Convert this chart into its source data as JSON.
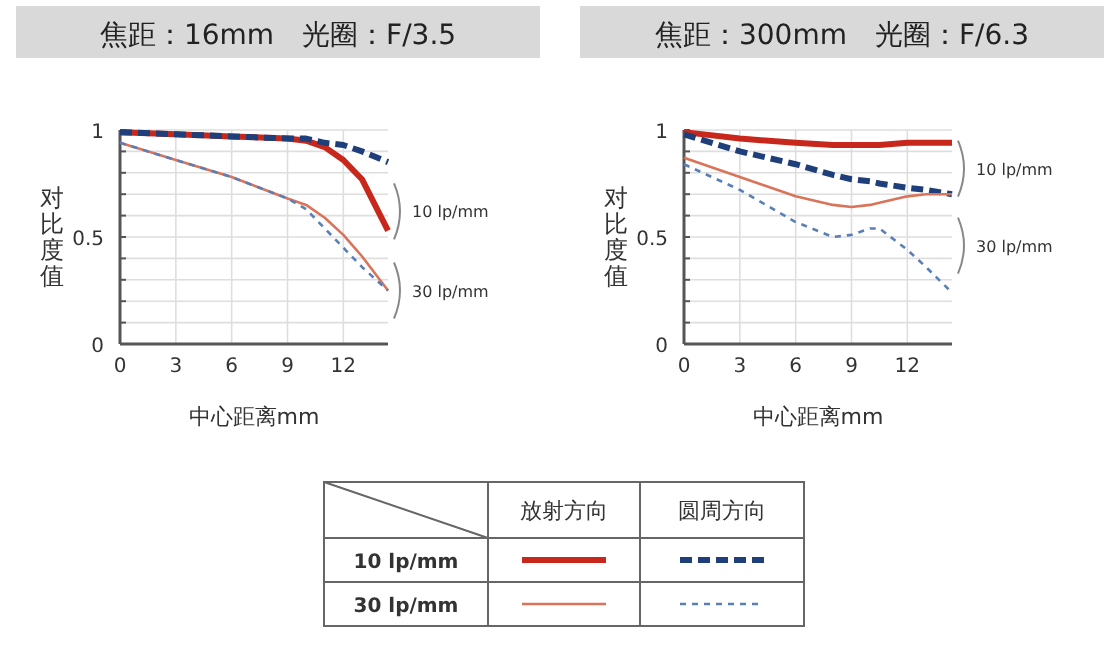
{
  "chart_data": [
    {
      "type": "line",
      "title": "焦距：16mm　光圈：F/3.5",
      "xlabel": "中心距离mm",
      "ylabel": "对比度值",
      "xlim": [
        0,
        14.4
      ],
      "ylim": [
        0,
        1
      ],
      "xticks": [
        0,
        3,
        6,
        9,
        12
      ],
      "yticks": [
        0,
        {
          "value": 0.1,
          "label": null
        },
        {
          "value": 0.2,
          "label": null
        },
        {
          "value": 0.3,
          "label": null
        },
        {
          "value": 0.4,
          "label": null
        },
        0.5,
        {
          "value": 0.6,
          "label": null
        },
        {
          "value": 0.7,
          "label": null
        },
        {
          "value": 0.8,
          "label": null
        },
        {
          "value": 0.9,
          "label": null
        },
        1
      ],
      "grid": true,
      "x": [
        0,
        3,
        6,
        9,
        10,
        11,
        12,
        13,
        14.4
      ],
      "series": [
        {
          "color": "#c8281c",
          "line_style": "solid",
          "values": [
            0.99,
            0.98,
            0.97,
            0.96,
            0.95,
            0.92,
            0.86,
            0.77,
            0.53
          ]
        },
        {
          "color": "#1f3f7a",
          "line_style": "dashed",
          "values": [
            0.99,
            0.98,
            0.97,
            0.96,
            0.96,
            0.94,
            0.93,
            0.9,
            0.85
          ]
        },
        {
          "color": "#d9735a",
          "line_style": "solid",
          "values": [
            0.94,
            0.86,
            0.78,
            0.68,
            0.65,
            0.59,
            0.51,
            0.41,
            0.25
          ]
        },
        {
          "color": "#5a7fb8",
          "line_style": "dashed",
          "values": [
            0.94,
            0.86,
            0.78,
            0.68,
            0.63,
            0.54,
            0.45,
            0.36,
            0.25
          ]
        }
      ],
      "annotations": [
        "10 lp/mm",
        "30 lp/mm"
      ]
    },
    {
      "type": "line",
      "title": "焦距：300mm　光圈：F/6.3",
      "xlabel": "中心距离mm",
      "ylabel": "对比度值",
      "xlim": [
        0,
        14.4
      ],
      "ylim": [
        0,
        1
      ],
      "xticks": [
        0,
        3,
        6,
        9,
        12
      ],
      "yticks": [
        0,
        {
          "value": 0.1,
          "label": null
        },
        {
          "value": 0.2,
          "label": null
        },
        {
          "value": 0.3,
          "label": null
        },
        {
          "value": 0.4,
          "label": null
        },
        0.5,
        {
          "value": 0.6,
          "label": null
        },
        {
          "value": 0.7,
          "label": null
        },
        {
          "value": 0.8,
          "label": null
        },
        {
          "value": 0.9,
          "label": null
        },
        1
      ],
      "grid": true,
      "x": [
        0,
        3,
        6,
        8,
        9,
        10,
        10.5,
        12,
        13,
        14.4
      ],
      "series": [
        {
          "color": "#c8281c",
          "line_style": "solid",
          "values": [
            0.99,
            0.96,
            0.94,
            0.93,
            0.93,
            0.93,
            0.93,
            0.94,
            0.94,
            0.94
          ]
        },
        {
          "color": "#1f3f7a",
          "line_style": "dashed",
          "values": [
            0.98,
            0.9,
            0.84,
            0.79,
            0.77,
            0.76,
            0.75,
            0.73,
            0.72,
            0.7
          ]
        },
        {
          "color": "#d9735a",
          "line_style": "solid",
          "values": [
            0.87,
            0.78,
            0.69,
            0.65,
            0.64,
            0.65,
            0.66,
            0.69,
            0.7,
            0.7
          ]
        },
        {
          "color": "#5a7fb8",
          "line_style": "dashed",
          "values": [
            0.84,
            0.72,
            0.57,
            0.5,
            0.51,
            0.54,
            0.54,
            0.44,
            0.36,
            0.24
          ]
        }
      ],
      "annotations": [
        "10 lp/mm",
        "30 lp/mm"
      ]
    },
    {
      "type": "other",
      "annotations": [
        "放射方向",
        "圆周方向",
        "10 lp/mm",
        "30 lp/mm"
      ]
    }
  ]
}
